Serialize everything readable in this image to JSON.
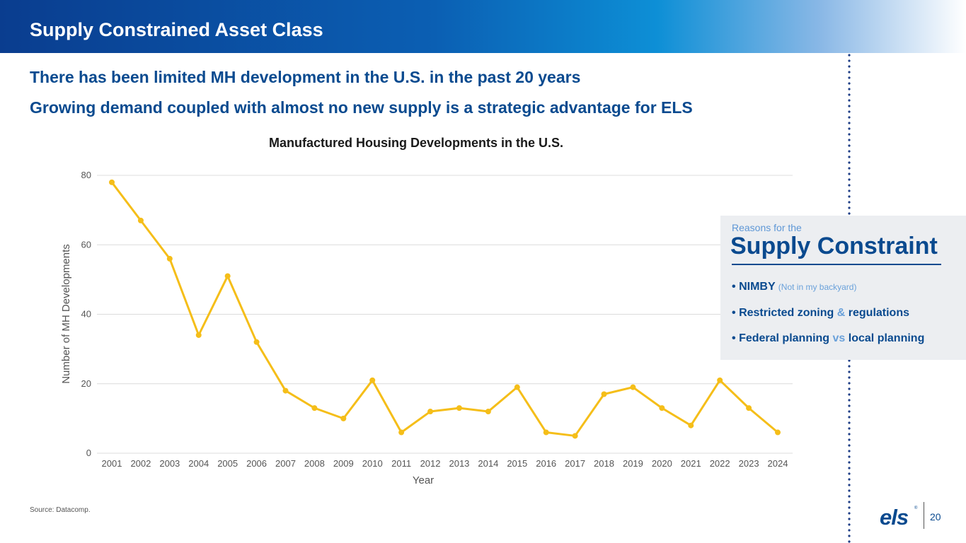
{
  "header": {
    "title": "Supply Constrained Asset Class"
  },
  "headlines": [
    "There has been limited MH development in the U.S. in the past 20 years",
    "Growing demand coupled with almost no new supply is a strategic advantage for ELS"
  ],
  "panel": {
    "kicker": "Reasons for the",
    "title": "Supply Constraint",
    "reasons": [
      {
        "bullet": "•",
        "main": "NIMBY",
        "note": "(Not in my backyard)"
      },
      {
        "bullet": "•",
        "part1": "Restricted zoning",
        "joiner": "&",
        "part2": "regulations"
      },
      {
        "bullet": "•",
        "part1": "Federal planning",
        "joiner": "vs",
        "part2": "local planning"
      }
    ]
  },
  "source": "Source: Datacomp.",
  "logo": {
    "text": "els",
    "mark": "®"
  },
  "page_number": "20",
  "colors": {
    "brand_navy": "#0a4a8f",
    "accent_light_blue": "#6aa1da",
    "series_line": "#f5be19"
  },
  "chart_data": {
    "type": "line",
    "title": "Manufactured Housing Developments in the U.S.",
    "xlabel": "Year",
    "ylabel": "Number of MH Developments",
    "categories": [
      "2001",
      "2002",
      "2003",
      "2004",
      "2005",
      "2006",
      "2007",
      "2008",
      "2009",
      "2010",
      "2011",
      "2012",
      "2013",
      "2014",
      "2015",
      "2016",
      "2017",
      "2018",
      "2019",
      "2020",
      "2021",
      "2022",
      "2023",
      "2024"
    ],
    "series": [
      {
        "values": [
          78,
          67,
          56,
          34,
          51,
          32,
          18,
          13,
          10,
          21,
          6,
          12,
          13,
          12,
          19,
          6,
          5,
          17,
          19,
          13,
          8,
          21,
          13,
          6
        ]
      }
    ],
    "ylim": [
      0,
      80
    ],
    "yticks": [
      0,
      20,
      40,
      60,
      80
    ],
    "grid": true,
    "legend": "none"
  }
}
